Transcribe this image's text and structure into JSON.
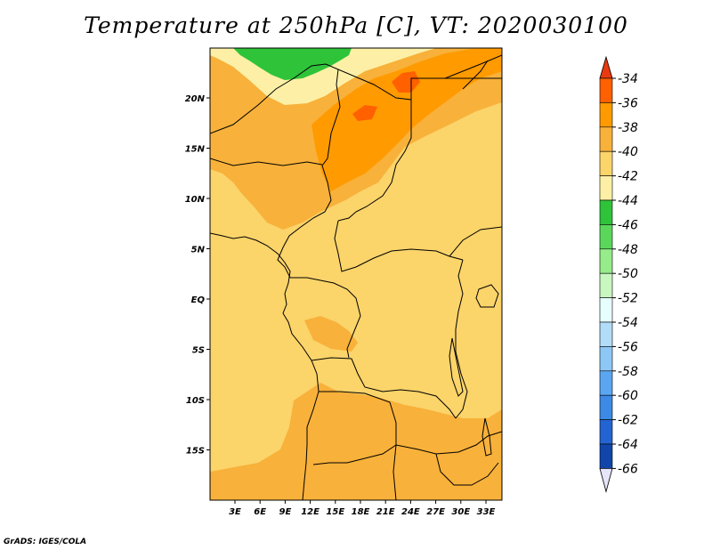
{
  "title": "Temperature at 250hPa [C], VT: 2020030100",
  "credit": "GrADS: IGES/COLA",
  "map": {
    "lat_labels": [
      "20N",
      "15N",
      "10N",
      "5N",
      "EQ",
      "5S",
      "10S",
      "15S"
    ],
    "lon_labels": [
      "3E",
      "6E",
      "9E",
      "12E",
      "15E",
      "18E",
      "21E",
      "24E",
      "27E",
      "30E",
      "33E"
    ]
  },
  "colorbar": {
    "levels": [
      "-34",
      "-36",
      "-38",
      "-40",
      "-42",
      "-44",
      "-46",
      "-48",
      "-50",
      "-52",
      "-54",
      "-56",
      "-58",
      "-60",
      "-62",
      "-64",
      "-66"
    ],
    "colors": [
      "#ff6000",
      "#ff9a00",
      "#f8b13a",
      "#fbd46a",
      "#fdf0a6",
      "#2fc33a",
      "#5ad75b",
      "#96eb8a",
      "#c8f7c0",
      "#e6fffe",
      "#b2ddf8",
      "#8dc7f5",
      "#5aa6f0",
      "#3c8ae6",
      "#2364d2",
      "#1145aa",
      "#0a0f7a"
    ],
    "upper_arrow_color": "#e83a10",
    "lower_arrow_color": "#e6e6fa"
  },
  "field_colors": {
    "base": "#fbd46a",
    "warm": "#f8b13a",
    "warmer": "#ff9a00",
    "warmest": "#ff6000",
    "cool": "#fdf0a6",
    "cold": "#2fc33a"
  }
}
